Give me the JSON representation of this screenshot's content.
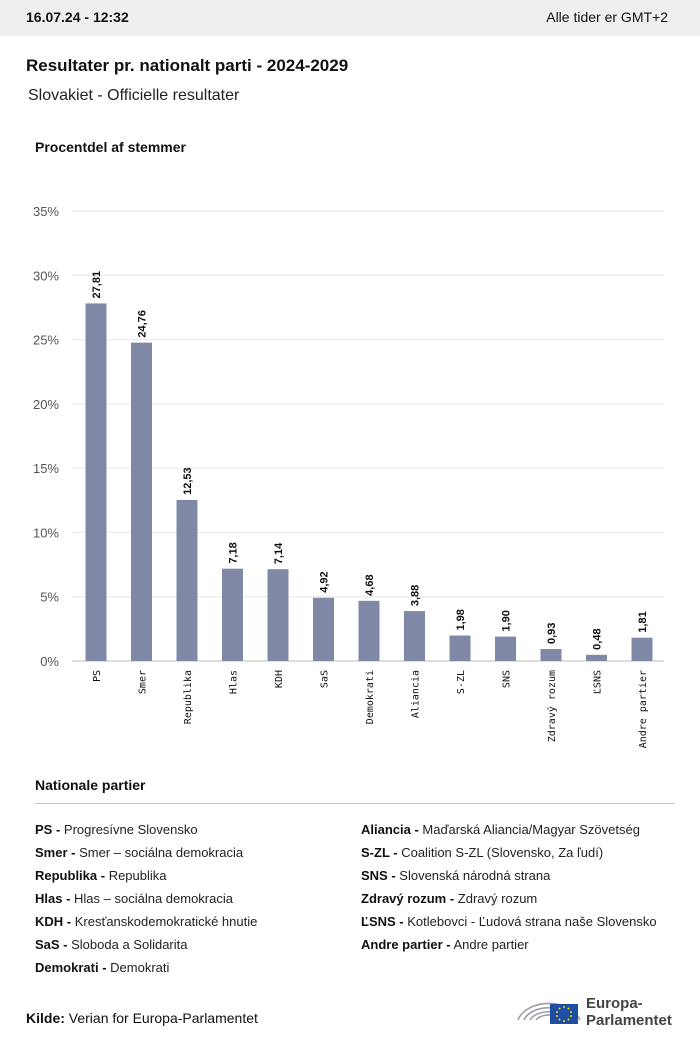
{
  "header": {
    "timestamp": "16.07.24 - 12:32",
    "timezone": "Alle tider er GMT+2"
  },
  "title": "Resultater pr. nationalt parti - 2024-2029",
  "subtitle": "Slovakiet - Officielle resultater",
  "chart_data": {
    "type": "bar",
    "ylabel": "Procentdel af stemmer",
    "ylim": [
      0,
      35
    ],
    "yticks": [
      "0%",
      "5%",
      "10%",
      "15%",
      "20%",
      "25%",
      "30%",
      "35%"
    ],
    "ytick_values": [
      0,
      5,
      10,
      15,
      20,
      25,
      30,
      35
    ],
    "grid": true,
    "categories": [
      "PS",
      "Smer",
      "Republika",
      "Hlas",
      "KDH",
      "SaS",
      "Demokrati",
      "Aliancia",
      "S-ZL",
      "SNS",
      "Zdravý rozum",
      "ĽSNS",
      "Andre partier"
    ],
    "values": [
      27.81,
      24.76,
      12.53,
      7.18,
      7.14,
      4.92,
      4.68,
      3.88,
      1.98,
      1.9,
      0.93,
      0.48,
      1.81
    ],
    "value_labels": [
      "27,81",
      "24,76",
      "12,53",
      "7,18",
      "7,14",
      "4,92",
      "4,68",
      "3,88",
      "1,98",
      "1,90",
      "0,93",
      "0,48",
      "1,81"
    ],
    "bar_color": "#7f88a4"
  },
  "legend": {
    "title": "Nationale partier",
    "column1": [
      {
        "abbr": "PS -",
        "name": "Progresívne Slovensko"
      },
      {
        "abbr": "Smer -",
        "name": "Smer – sociálna demokracia"
      },
      {
        "abbr": "Republika -",
        "name": "Republika"
      },
      {
        "abbr": "Hlas -",
        "name": "Hlas – sociálna demokracia"
      },
      {
        "abbr": "KDH -",
        "name": "Kresťanskodemokratické hnutie"
      },
      {
        "abbr": "SaS -",
        "name": "Sloboda a Solidarita"
      },
      {
        "abbr": "Demokrati -",
        "name": "Demokrati"
      }
    ],
    "column2": [
      {
        "abbr": "Aliancia -",
        "name": "Maďarská Aliancia/Magyar Szövetség"
      },
      {
        "abbr": "S-ZL -",
        "name": "Coalition S-ZL (Slovensko, Za ľudí)"
      },
      {
        "abbr": "SNS -",
        "name": "Slovenská národná strana"
      },
      {
        "abbr": "Zdravý rozum -",
        "name": "Zdravý rozum"
      },
      {
        "abbr": "ĽSNS -",
        "name": "Kotlebovci - Ľudová strana naše Slovensko"
      },
      {
        "abbr": "Andre partier -",
        "name": "Andre partier"
      }
    ]
  },
  "source": {
    "label": "Kilde:",
    "text": "Verian for Europa-Parlamentet"
  },
  "logo": {
    "icon": "european-parliament-logo-icon",
    "line1": "Europa-",
    "line2": "Parlamentet"
  }
}
